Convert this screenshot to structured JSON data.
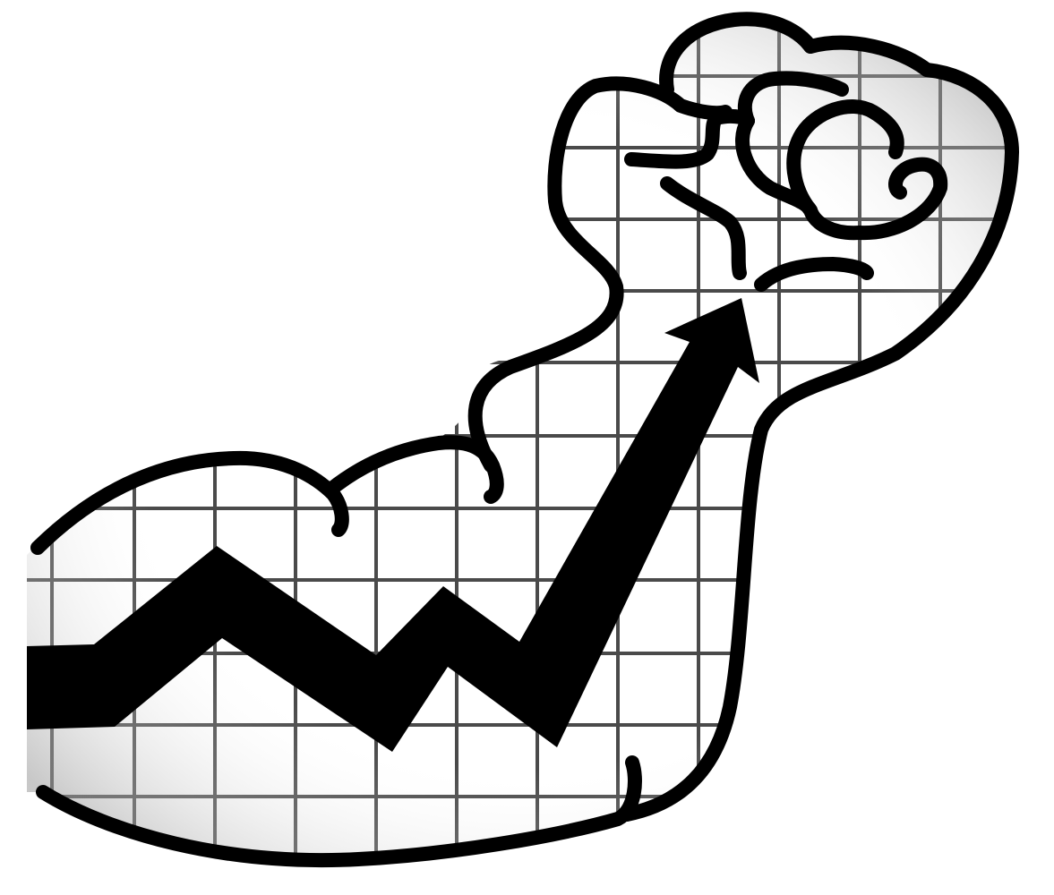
{
  "illustration": {
    "subject": "flexed-arm-growth-chart",
    "palette": {
      "outline": "#000000",
      "grid_line": "#4a4a4a",
      "background": "#ffffff",
      "shading": "#9a9a9a"
    }
  }
}
